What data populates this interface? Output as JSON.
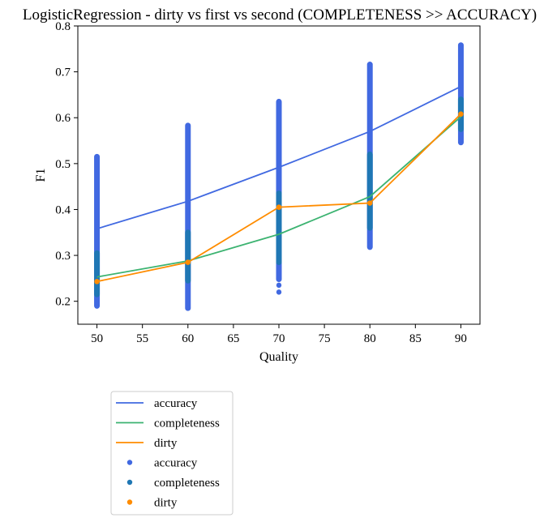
{
  "chart_data": {
    "type": "line",
    "title": "LogisticRegression - dirty vs first vs second (COMPLETENESS >> ACCURACY)",
    "xlabel": "Quality",
    "ylabel": "F1",
    "xlim": [
      47.9,
      92.1
    ],
    "ylim": [
      0.15,
      0.8
    ],
    "x_ticks": [
      50,
      55,
      60,
      65,
      70,
      75,
      80,
      85,
      90
    ],
    "y_ticks": [
      0.2,
      0.3,
      0.4,
      0.5,
      0.6,
      0.7,
      0.8
    ],
    "grid": false,
    "legend_placement": "below-left",
    "x": [
      50,
      60,
      70,
      80,
      90
    ],
    "series": [
      {
        "name": "accuracy",
        "kind": "line",
        "color": "#4169e1",
        "values": [
          0.358,
          0.418,
          0.492,
          0.57,
          0.668
        ]
      },
      {
        "name": "completeness",
        "kind": "line",
        "color": "#3cb371",
        "values": [
          0.253,
          0.288,
          0.346,
          0.428,
          0.602
        ]
      },
      {
        "name": "dirty",
        "kind": "line",
        "color": "#ff8c00",
        "values": [
          0.243,
          0.285,
          0.405,
          0.414,
          0.608
        ]
      }
    ],
    "scatter_series": [
      {
        "name": "accuracy",
        "kind": "scatter",
        "color": "#4169e1",
        "ranges": [
          {
            "x": 50,
            "min": 0.19,
            "max": 0.515
          },
          {
            "x": 60,
            "min": 0.185,
            "max": 0.583
          },
          {
            "x": 70,
            "min": 0.248,
            "max": 0.635
          },
          {
            "x": 80,
            "min": 0.318,
            "max": 0.716
          },
          {
            "x": 90,
            "min": 0.546,
            "max": 0.758
          }
        ],
        "outliers": [
          {
            "x": 70,
            "y": 0.235
          },
          {
            "x": 70,
            "y": 0.22
          }
        ]
      },
      {
        "name": "completeness",
        "kind": "scatter",
        "color": "#1f77b4",
        "ranges": [
          {
            "x": 50,
            "min": 0.215,
            "max": 0.305
          },
          {
            "x": 60,
            "min": 0.245,
            "max": 0.35
          },
          {
            "x": 70,
            "min": 0.285,
            "max": 0.435
          },
          {
            "x": 80,
            "min": 0.36,
            "max": 0.52
          },
          {
            "x": 90,
            "min": 0.575,
            "max": 0.64
          }
        ],
        "outliers": []
      },
      {
        "name": "dirty",
        "kind": "scatter",
        "color": "#ff8c00",
        "ranges": [],
        "outliers": [
          {
            "x": 50,
            "y": 0.243
          },
          {
            "x": 60,
            "y": 0.285
          },
          {
            "x": 70,
            "y": 0.405
          },
          {
            "x": 80,
            "y": 0.414
          },
          {
            "x": 90,
            "y": 0.608
          }
        ]
      }
    ],
    "legend": [
      {
        "label": "accuracy",
        "kind": "line",
        "color": "#4169e1"
      },
      {
        "label": "completeness",
        "kind": "line",
        "color": "#3cb371"
      },
      {
        "label": "dirty",
        "kind": "line",
        "color": "#ff8c00"
      },
      {
        "label": "accuracy",
        "kind": "dot",
        "color": "#4169e1"
      },
      {
        "label": "completeness",
        "kind": "dot",
        "color": "#1f77b4"
      },
      {
        "label": "dirty",
        "kind": "dot",
        "color": "#ff8c00"
      }
    ]
  }
}
